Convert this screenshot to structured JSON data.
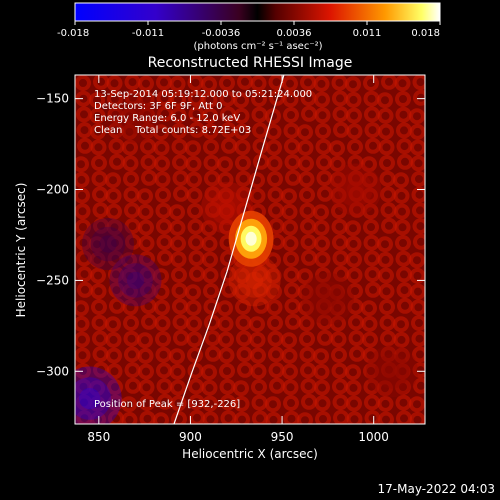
{
  "chart_data": {
    "type": "heatmap",
    "title": "Reconstructed RHESSI Image",
    "xlabel": "Heliocentric X (arcsec)",
    "ylabel": "Heliocentric Y (arcsec)",
    "xlim": [
      837,
      1028
    ],
    "ylim": [
      -329,
      -137
    ],
    "x_ticks": [
      850,
      900,
      950,
      1000
    ],
    "y_ticks": [
      -150,
      -200,
      -250,
      -300
    ],
    "colorbar": {
      "colormap": "blue-purple-red-yellow-white",
      "range": [
        -0.018,
        0.018
      ],
      "ticks": [
        "-0.018",
        "-0.011",
        "-0.0036",
        "0.0036",
        "0.011",
        "0.018"
      ],
      "unit": "(photons cm⁻² s⁻¹ asec⁻²)"
    },
    "annotations": [
      "13-Sep-2014 05:19:12.000 to 05:21:24.000",
      "Detectors: 3F 6F 9F, Att 0",
      "Energy Range: 6.0 - 12.0 keV",
      "Clean    Total counts: 8.72E+03"
    ],
    "peak": {
      "label": "Position of Peak = [932,-226]",
      "x": 932,
      "y": -226,
      "value": 0.018
    },
    "limb_line": [
      [
        891,
        -329
      ],
      [
        901,
        -300
      ],
      [
        910,
        -275
      ],
      [
        920,
        -245
      ],
      [
        930,
        -210
      ],
      [
        940,
        -175
      ],
      [
        951,
        -137
      ]
    ],
    "regions": [
      {
        "x": 920,
        "y": -210,
        "value": 0.006
      },
      {
        "x": 935,
        "y": -250,
        "value": 0.008
      },
      {
        "x": 990,
        "y": -200,
        "value": 0.005
      },
      {
        "x": 1010,
        "y": -300,
        "value": 0.004
      },
      {
        "x": 975,
        "y": -260,
        "value": 0.004
      },
      {
        "x": 870,
        "y": -160,
        "value": 0.004
      },
      {
        "x": 855,
        "y": -230,
        "value": -0.004
      },
      {
        "x": 870,
        "y": -250,
        "value": -0.006
      },
      {
        "x": 845,
        "y": -315,
        "value": -0.012
      }
    ]
  },
  "footer": {
    "timestamp": "17-May-2022 04:03"
  },
  "colors": {
    "background": "#000000",
    "text": "#ffffff",
    "limb": "#ffffff"
  }
}
